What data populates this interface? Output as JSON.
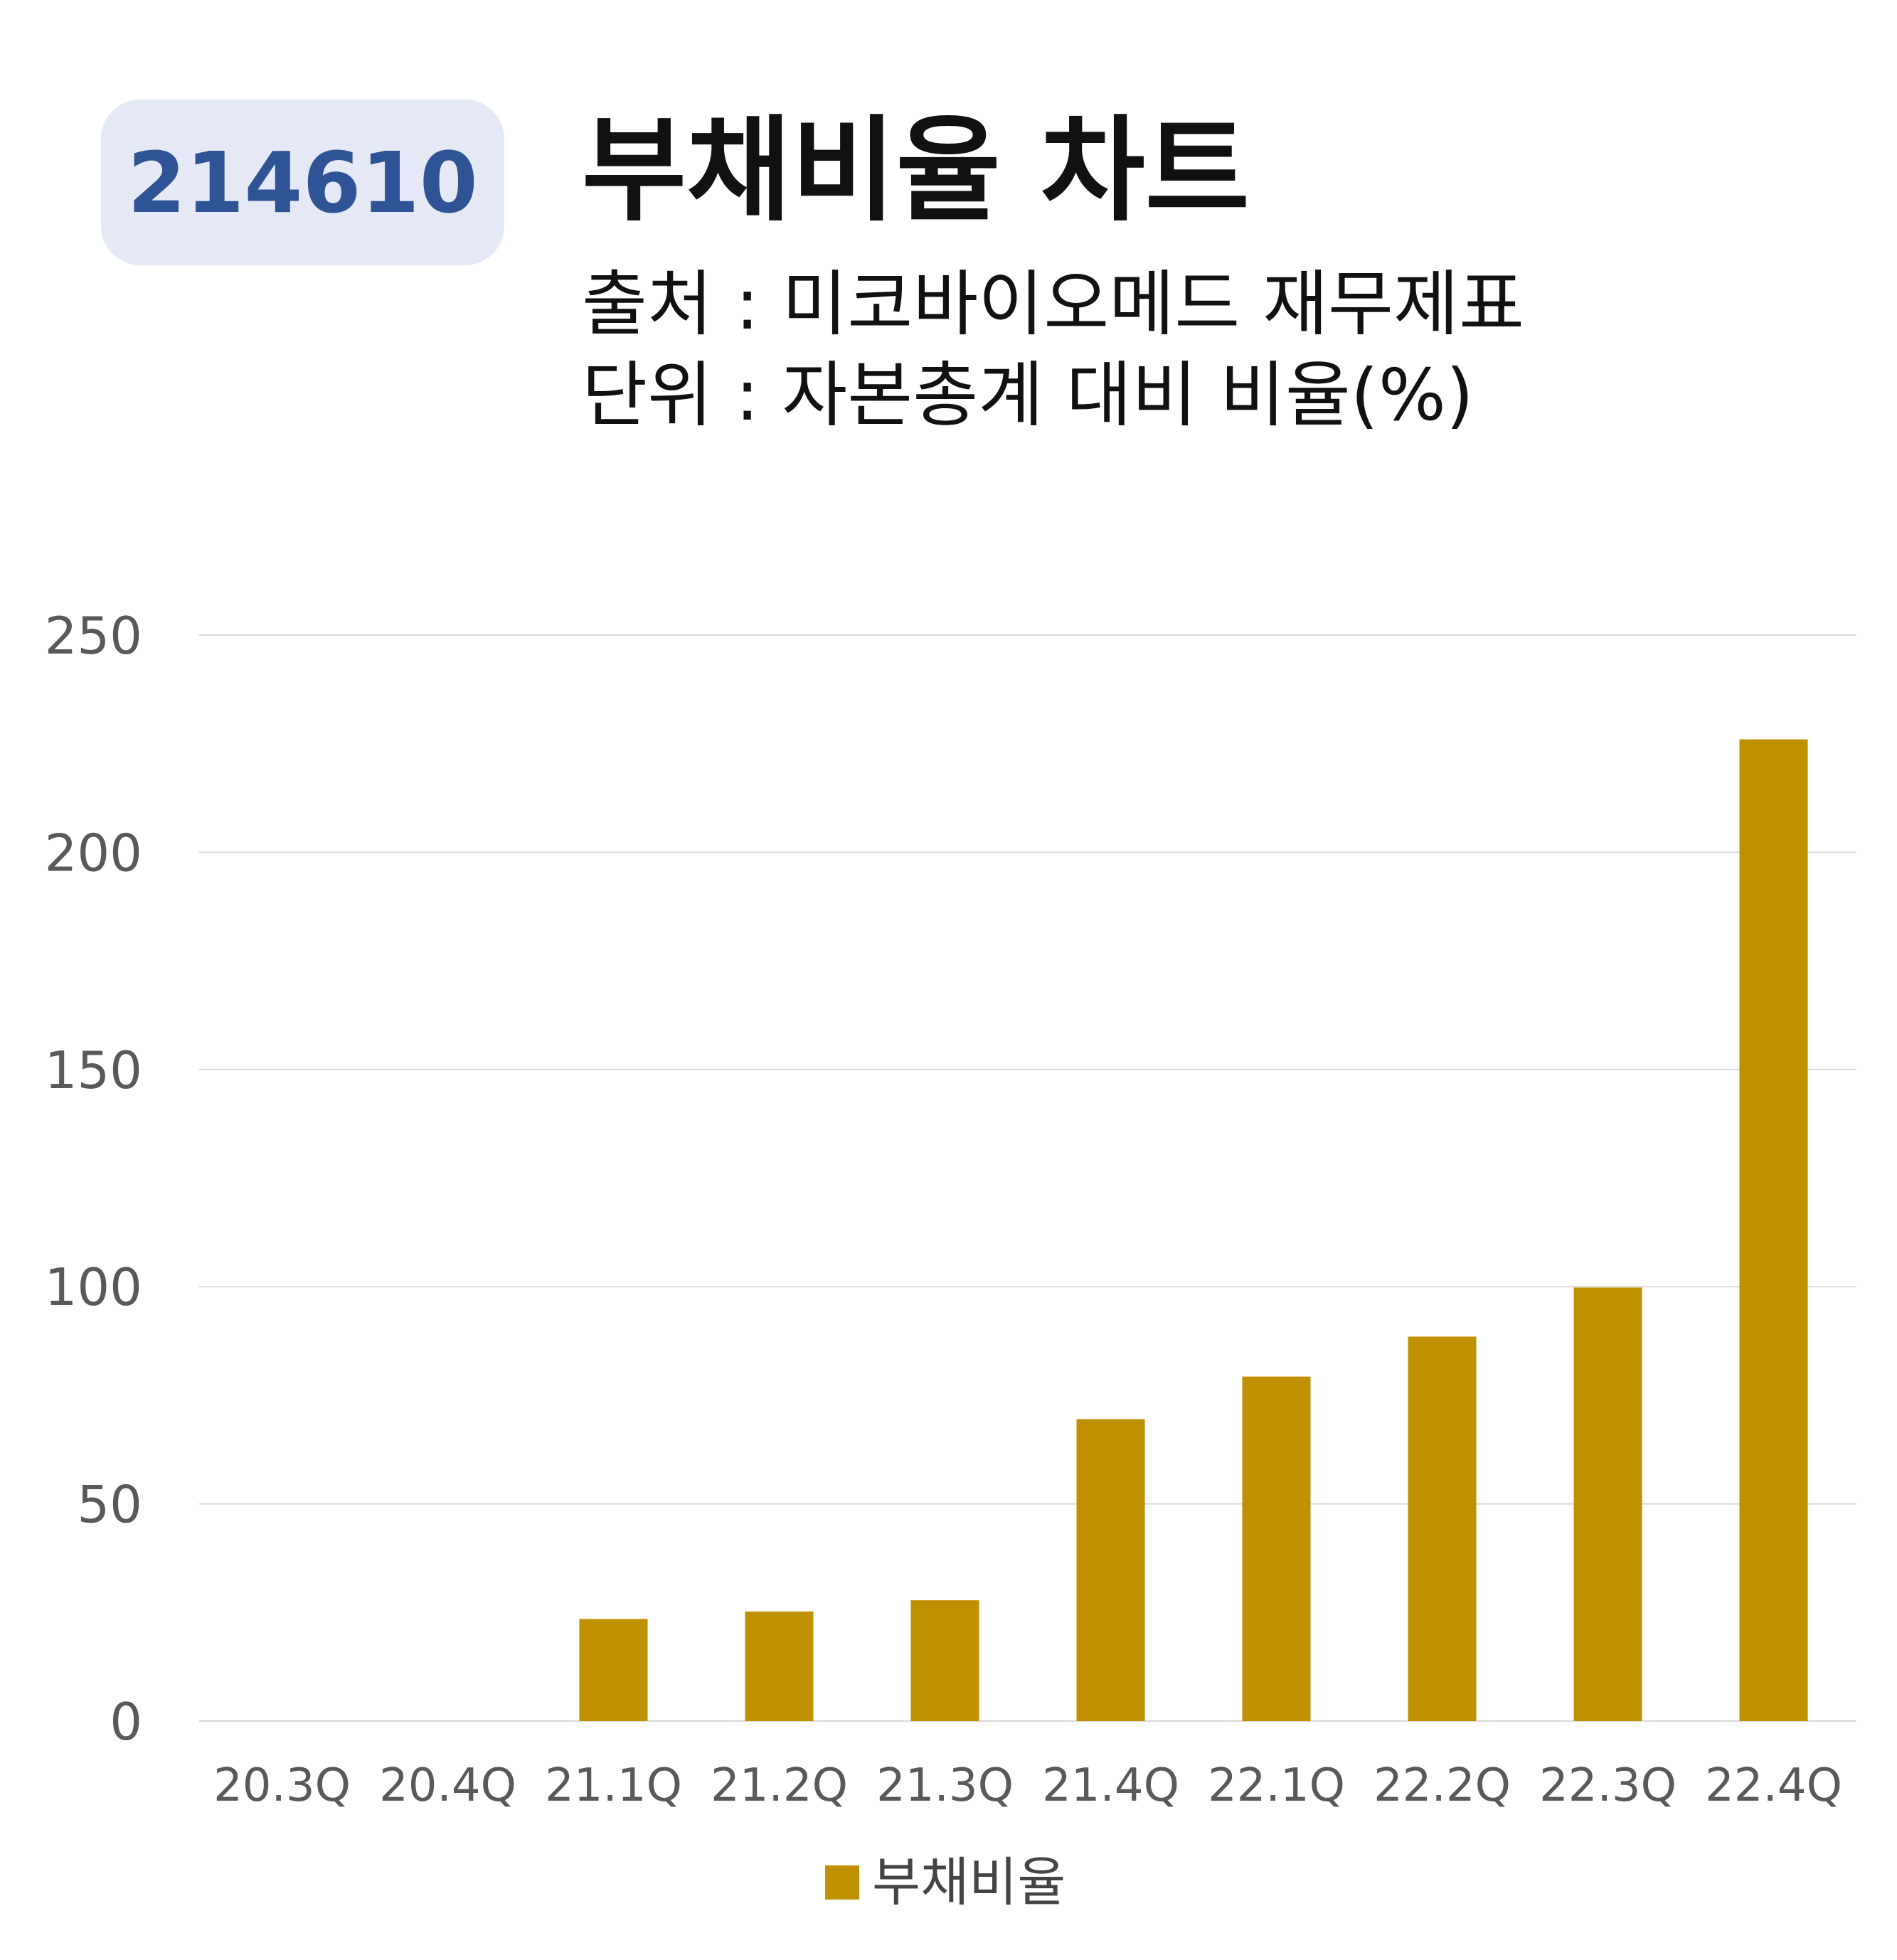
{
  "header": {
    "code": "214610",
    "title": "부채비율 차트",
    "source": "출처 : 미코바이오메드 재무제표",
    "unit": "단위 : 자본총계 대비 비율(%)"
  },
  "colors": {
    "bar": "#bf9000",
    "badge_bg": "#e4e9f5",
    "badge_text": "#2f5496",
    "grid": "#d9d9d9"
  },
  "chart_data": {
    "type": "bar",
    "categories": [
      "20.3Q",
      "20.4Q",
      "21.1Q",
      "21.2Q",
      "21.3Q",
      "21.4Q",
      "22.1Q",
      "22.2Q",
      "22.3Q",
      "22.4Q"
    ],
    "series": [
      {
        "name": "부채비율",
        "values": [
          null,
          null,
          23.5,
          25.2,
          27.8,
          69.5,
          79.3,
          88.5,
          99.8,
          226.0
        ]
      }
    ],
    "ylim": [
      0,
      250
    ],
    "yticks": [
      0,
      50,
      100,
      150,
      200,
      250
    ],
    "grid": true,
    "legend": "bottom-center"
  }
}
